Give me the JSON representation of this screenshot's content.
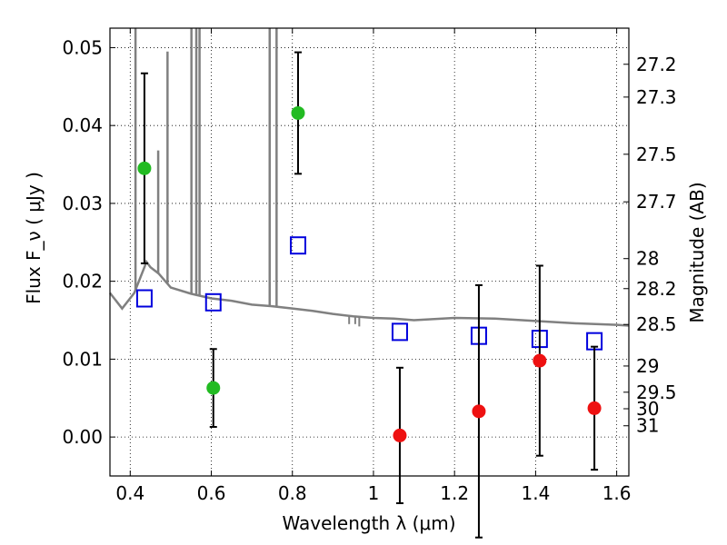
{
  "chart_data": {
    "type": "scatter",
    "xlabel": "Wavelength  λ (μm)",
    "ylabel": "Flux  F_ν  ( μJy )",
    "ylabel_right": "Magnitude (AB)",
    "xlim": [
      0.35,
      1.63
    ],
    "ylim": [
      -0.005,
      0.0525
    ],
    "x_ticks": [
      0.4,
      0.6,
      0.8,
      1.0,
      1.2,
      1.4,
      1.6
    ],
    "x_tick_labels": [
      "0.4",
      "0.6",
      "0.8",
      "1",
      "1.2",
      "1.4",
      "1.6"
    ],
    "y_ticks": [
      0.0,
      0.01,
      0.02,
      0.03,
      0.04,
      0.05
    ],
    "y_tick_labels": [
      "0.00",
      "0.01",
      "0.02",
      "0.03",
      "0.04",
      "0.05"
    ],
    "right_ticks": [
      27.2,
      27.3,
      27.5,
      27.7,
      28,
      28.2,
      28.5,
      29,
      29.5,
      30,
      31
    ],
    "right_tick_labels": [
      "27.2",
      "27.3",
      "27.5",
      "27.7",
      "28",
      "28.2",
      "28.5",
      "29",
      "29.5",
      "30",
      "31"
    ],
    "grid": true,
    "colors": {
      "detections": "#22bb22",
      "upper_limits": "#ee1111",
      "model_flux": "#0000dd",
      "model_spectrum": "#808080",
      "errorbar": "#000000"
    },
    "series": [
      {
        "kind": "detection",
        "x": [
          0.435,
          0.605,
          0.814
        ],
        "y": [
          0.0345,
          0.0063,
          0.0416
        ],
        "err": [
          0.0122,
          0.005,
          0.0078
        ]
      },
      {
        "kind": "non-detection",
        "x": [
          1.065,
          1.26,
          1.41,
          1.545
        ],
        "y": [
          0.0002,
          0.0033,
          0.0098,
          0.0037
        ],
        "err": [
          0.0087,
          0.0162,
          0.0122,
          0.0079
        ]
      },
      {
        "kind": "model-flux",
        "x": [
          0.435,
          0.605,
          0.814,
          1.065,
          1.26,
          1.41,
          1.545
        ],
        "y": [
          0.0178,
          0.0173,
          0.0246,
          0.0135,
          0.013,
          0.0126,
          0.0123
        ]
      },
      {
        "kind": "model-spectrum",
        "x": [
          0.35,
          0.38,
          0.41,
          0.435,
          0.44,
          0.45,
          0.47,
          0.5,
          0.55,
          0.6,
          0.65,
          0.7,
          0.75,
          0.8,
          0.85,
          0.9,
          0.95,
          1.0,
          1.05,
          1.1,
          1.2,
          1.3,
          1.4,
          1.5,
          1.6,
          1.63
        ],
        "y": [
          0.0185,
          0.0165,
          0.0185,
          0.0218,
          0.0225,
          0.0218,
          0.021,
          0.0192,
          0.0184,
          0.0178,
          0.0175,
          0.017,
          0.0168,
          0.0165,
          0.0162,
          0.0158,
          0.0155,
          0.0153,
          0.0152,
          0.015,
          0.0153,
          0.0152,
          0.0149,
          0.0146,
          0.0144,
          0.0143
        ],
        "emission_lines": [
          {
            "x": 0.413,
            "top": 0.0525
          },
          {
            "x": 0.469,
            "top": 0.0368
          },
          {
            "x": 0.492,
            "top": 0.0495
          },
          {
            "x": 0.551,
            "top": 0.0525
          },
          {
            "x": 0.563,
            "top": 0.0525
          },
          {
            "x": 0.571,
            "top": 0.0525
          },
          {
            "x": 0.744,
            "top": 0.0525
          },
          {
            "x": 0.761,
            "top": 0.0525
          }
        ],
        "absorption_dips": [
          {
            "x": 0.94,
            "bottom": 0.0145
          },
          {
            "x": 0.955,
            "bottom": 0.0145
          },
          {
            "x": 0.965,
            "bottom": 0.0142
          }
        ]
      }
    ]
  }
}
